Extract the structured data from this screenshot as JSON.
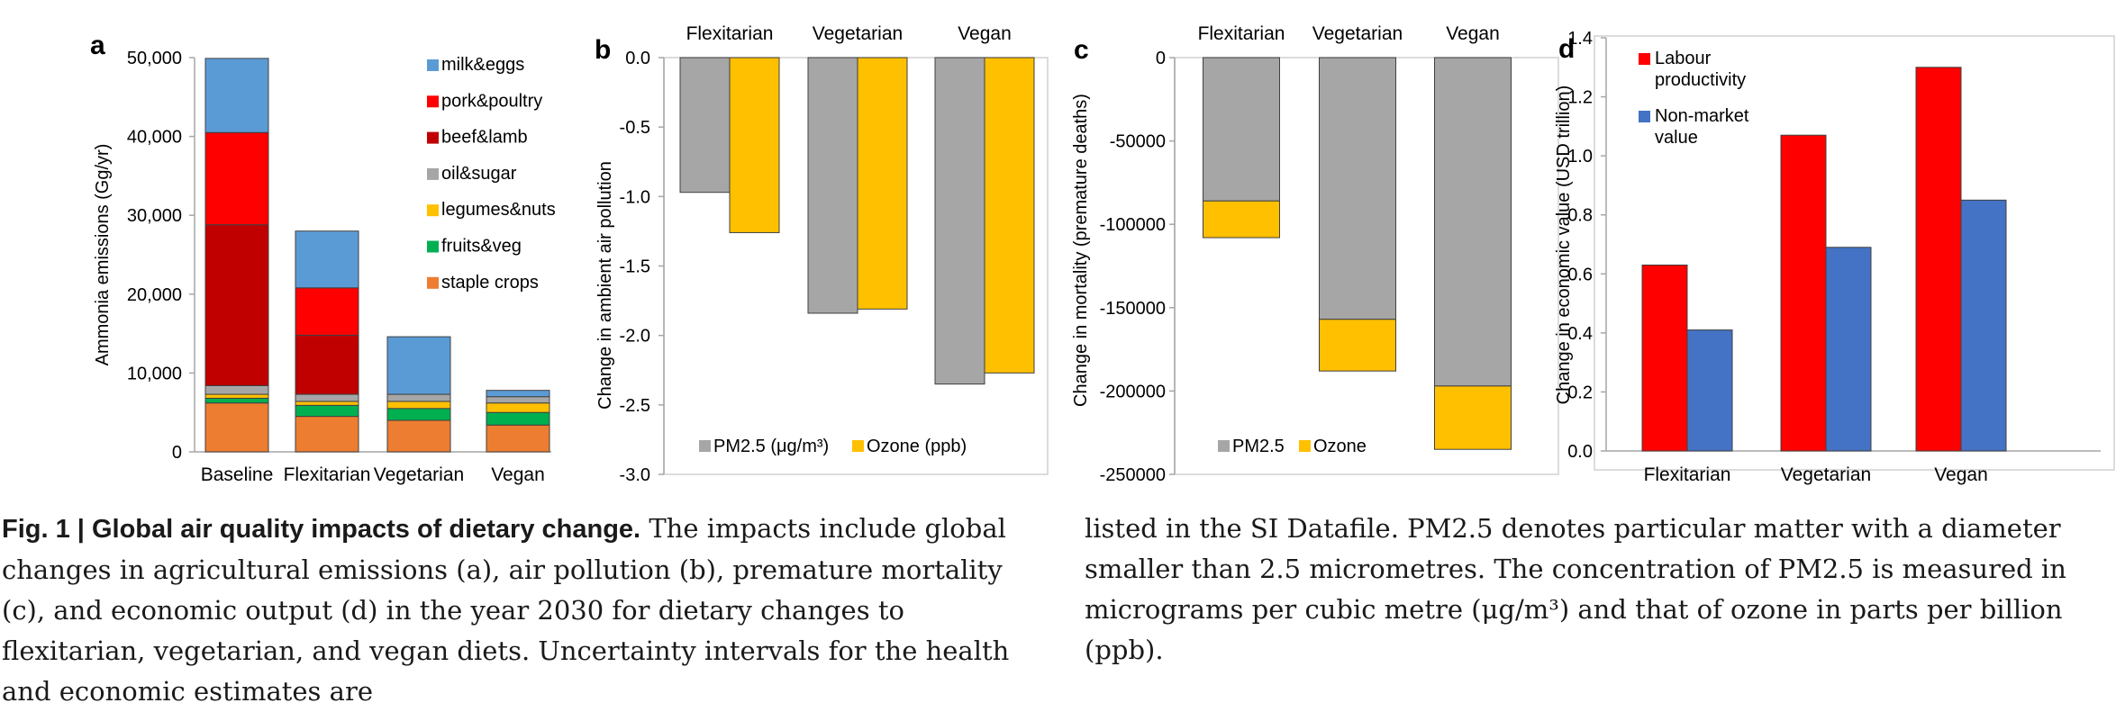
{
  "chart_data": [
    {
      "panel": "a",
      "type": "bar",
      "stacked": true,
      "ylabel": "Ammonia emissions (Gg/yr)",
      "ylim": [
        0,
        50000
      ],
      "yticks": [
        "0",
        "10,000",
        "20,000",
        "30,000",
        "40,000",
        "50,000"
      ],
      "categories": [
        "Baseline",
        "Flexitarian",
        "Vegetarian",
        "Vegan"
      ],
      "series": [
        {
          "name": "staple crops",
          "color": "#ED7D31",
          "values": [
            6200,
            4500,
            4000,
            3400
          ]
        },
        {
          "name": "fruits&veg",
          "color": "#00B050",
          "values": [
            600,
            1400,
            1500,
            1600
          ]
        },
        {
          "name": "legumes&nuts",
          "color": "#FFC000",
          "values": [
            500,
            500,
            900,
            1200
          ]
        },
        {
          "name": "oil&sugar",
          "color": "#A6A6A6",
          "values": [
            1100,
            900,
            900,
            800
          ]
        },
        {
          "name": "beef&lamb",
          "color": "#C00000",
          "values": [
            20400,
            7500,
            0,
            0
          ]
        },
        {
          "name": "pork&poultry",
          "color": "#FF0000",
          "values": [
            11700,
            6000,
            0,
            0
          ]
        },
        {
          "name": "milk&eggs",
          "color": "#5B9BD5",
          "values": [
            9400,
            7200,
            7300,
            800
          ]
        }
      ],
      "legend": "top-right"
    },
    {
      "panel": "b",
      "type": "bar",
      "ylabel": "Change in ambient air pollution",
      "ylim": [
        -3.0,
        0.0
      ],
      "yticks": [
        "0.0",
        "-0.5",
        "-1.0",
        "-1.5",
        "-2.0",
        "-2.5",
        "-3.0"
      ],
      "categories": [
        "Flexitarian",
        "Vegetarian",
        "Vegan"
      ],
      "series": [
        {
          "name": "PM2.5 (μg/m³)",
          "color": "#A6A6A6",
          "values": [
            -0.97,
            -1.84,
            -2.35
          ]
        },
        {
          "name": "Ozone (ppb)",
          "color": "#FFC000",
          "values": [
            -1.26,
            -1.81,
            -2.27
          ]
        }
      ],
      "legend": "bottom"
    },
    {
      "panel": "c",
      "type": "bar",
      "stacked": true,
      "ylabel": "Change in mortality (premature deaths)",
      "ylim": [
        -250000,
        0
      ],
      "yticks": [
        "0",
        "-50000",
        "-100000",
        "-150000",
        "-200000",
        "-250000"
      ],
      "categories": [
        "Flexitarian",
        "Vegetarian",
        "Vegan"
      ],
      "series": [
        {
          "name": "PM2.5",
          "color": "#A6A6A6",
          "values": [
            -86000,
            -157000,
            -197000
          ]
        },
        {
          "name": "Ozone",
          "color": "#FFC000",
          "values": [
            -22000,
            -31000,
            -38000
          ]
        }
      ],
      "legend": "bottom"
    },
    {
      "panel": "d",
      "type": "bar",
      "ylabel": "Change in economic value (USD trillion)",
      "ylim": [
        0,
        1.4
      ],
      "yticks": [
        "0.0",
        "0.2",
        "0.4",
        "0.6",
        "0.8",
        "1.0",
        "1.2",
        "1.4"
      ],
      "categories": [
        "Flexitarian",
        "Vegetarian",
        "Vegan"
      ],
      "series": [
        {
          "name": "Labour productivity",
          "color": "#FF0000",
          "values": [
            0.63,
            1.07,
            1.3
          ]
        },
        {
          "name": "Non-market value",
          "color": "#4472C4",
          "values": [
            0.41,
            0.69,
            0.85
          ]
        }
      ],
      "legend": "top-left"
    }
  ],
  "caption": {
    "left": {
      "label": "Fig. 1 | Global air quality impacts of dietary change.",
      "text": " The impacts include global changes in agricultural emissions (a), air pollution (b), premature mortality (c), and economic output (d) in the year 2030 for dietary changes to flexitarian, vegetarian, and vegan diets. Uncertainty intervals for the health and economic estimates are"
    },
    "right": "listed in the SI Datafile. PM2.5 denotes particular matter with a diameter smaller than 2.5 micrometres. The concentration of PM2.5 is measured in micrograms per cubic metre (μg/m³) and that of ozone in parts per billion (ppb)."
  }
}
